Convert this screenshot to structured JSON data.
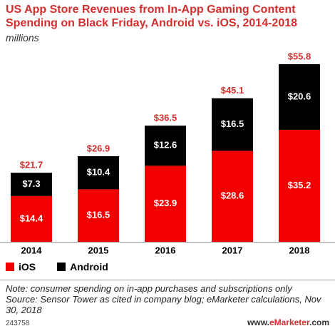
{
  "header": {
    "title": "US App Store Revenues from In-App Gaming Content Spending on Black Friday, Android vs. iOS, 2014-2018",
    "subtitle": "millions"
  },
  "legend": {
    "ios_label": "iOS",
    "android_label": "Android"
  },
  "footer": {
    "note": "Note: consumer spending on in-app purchases and subscriptions only",
    "source": "Source: Sensor Tower as cited in company blog; eMarketer calculations, Nov 30, 2018",
    "chart_id": "243758",
    "brand_prefix": "www.",
    "brand_name": "eMarketer",
    "brand_suffix": ".com"
  },
  "colors": {
    "ios": "#f20000",
    "android": "#000000",
    "total_label": "#d32f2f",
    "segment_label": "#ffffff"
  },
  "chart_data": {
    "type": "bar",
    "stacked": true,
    "categories": [
      "2014",
      "2015",
      "2016",
      "2017",
      "2018"
    ],
    "series": [
      {
        "name": "iOS",
        "values": [
          14.4,
          16.5,
          23.9,
          28.6,
          35.2
        ],
        "labels": [
          "$14.4",
          "$16.5",
          "$23.9",
          "$28.6",
          "$35.2"
        ]
      },
      {
        "name": "Android",
        "values": [
          7.3,
          10.4,
          12.6,
          16.5,
          20.6
        ],
        "labels": [
          "$7.3",
          "$10.4",
          "$12.6",
          "$16.5",
          "$20.6"
        ]
      }
    ],
    "totals": [
      21.7,
      26.9,
      36.5,
      45.1,
      55.8
    ],
    "total_labels": [
      "$21.7",
      "$26.9",
      "$36.5",
      "$45.1",
      "$55.8"
    ],
    "ylim": [
      0,
      55.8
    ],
    "grid": false,
    "legend_position": "bottom-left"
  }
}
